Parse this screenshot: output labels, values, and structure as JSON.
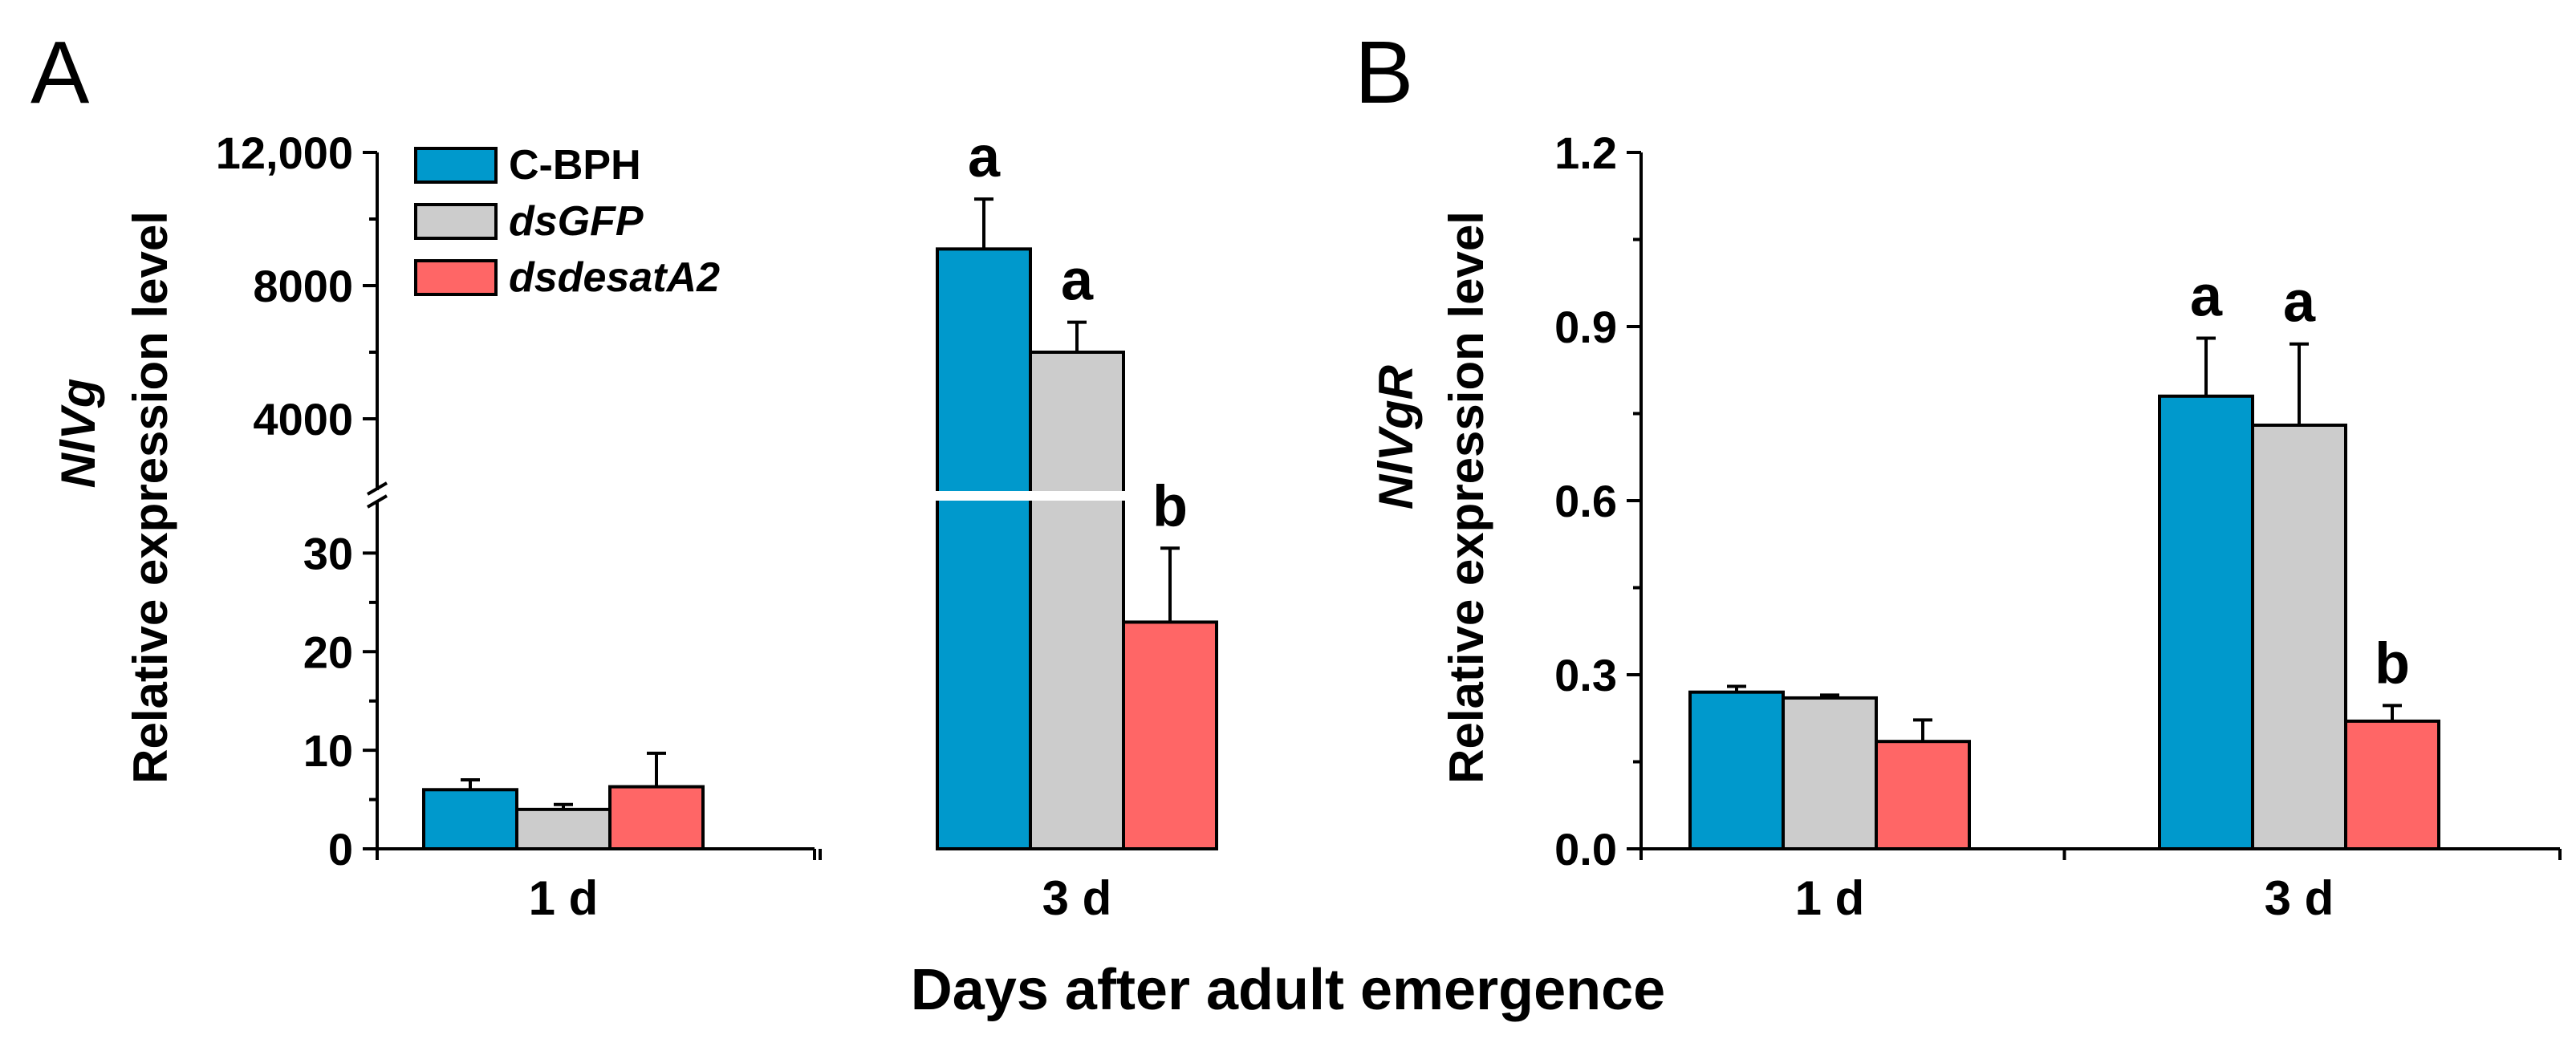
{
  "figure": {
    "shared_xlabel": "Days after adult emergence",
    "legend": [
      {
        "name": "C-BPH",
        "color": "#0099CC",
        "italic": false
      },
      {
        "name": "dsGFP",
        "color": "#CCCCCC",
        "italic": true
      },
      {
        "name": "dsdesatA2",
        "color": "#FF6666",
        "italic": true
      }
    ]
  },
  "chart_data": [
    {
      "type": "bar",
      "panel_label": "A",
      "gene": "NlVg",
      "ylabel": "Relative expression level",
      "categories": [
        "1 d",
        "3 d"
      ],
      "axis_break": true,
      "lower_segment": {
        "ylim": [
          0,
          35
        ],
        "ticks": [
          0,
          10,
          20,
          30
        ],
        "tick_labels": [
          "0",
          "10",
          "20",
          "30"
        ]
      },
      "upper_segment": {
        "ylim": [
          2000,
          12000
        ],
        "ticks": [
          4000,
          8000,
          12000
        ],
        "tick_labels": [
          "4000",
          "8000",
          "12,000"
        ]
      },
      "series": [
        {
          "name": "C-BPH",
          "values": [
            6.0,
            9100
          ],
          "errors": [
            1.0,
            1500
          ],
          "letters": [
            "",
            "a"
          ]
        },
        {
          "name": "dsGFP",
          "values": [
            4.0,
            6000
          ],
          "errors": [
            0.5,
            900
          ],
          "letters": [
            "",
            "a"
          ]
        },
        {
          "name": "dsdesatA2",
          "values": [
            6.3,
            23
          ],
          "errors": [
            3.4,
            7.5
          ],
          "letters": [
            "",
            "b"
          ]
        }
      ]
    },
    {
      "type": "bar",
      "panel_label": "B",
      "gene": "NlVgR",
      "ylabel": "Relative expression level",
      "categories": [
        "1 d",
        "3 d"
      ],
      "ylim": [
        0,
        1.2
      ],
      "ticks": [
        0,
        0.3,
        0.6,
        0.9,
        1.2
      ],
      "tick_labels": [
        "0.0",
        "0.3",
        "0.6",
        "0.9",
        "1.2"
      ],
      "series": [
        {
          "name": "C-BPH",
          "values": [
            0.27,
            0.78
          ],
          "errors": [
            0.01,
            0.1
          ],
          "letters": [
            "",
            "a"
          ]
        },
        {
          "name": "dsGFP",
          "values": [
            0.26,
            0.73
          ],
          "errors": [
            0.005,
            0.14
          ],
          "letters": [
            "",
            "a"
          ]
        },
        {
          "name": "dsdesatA2",
          "values": [
            0.185,
            0.22
          ],
          "errors": [
            0.037,
            0.027
          ],
          "letters": [
            "",
            "b"
          ]
        }
      ]
    }
  ]
}
